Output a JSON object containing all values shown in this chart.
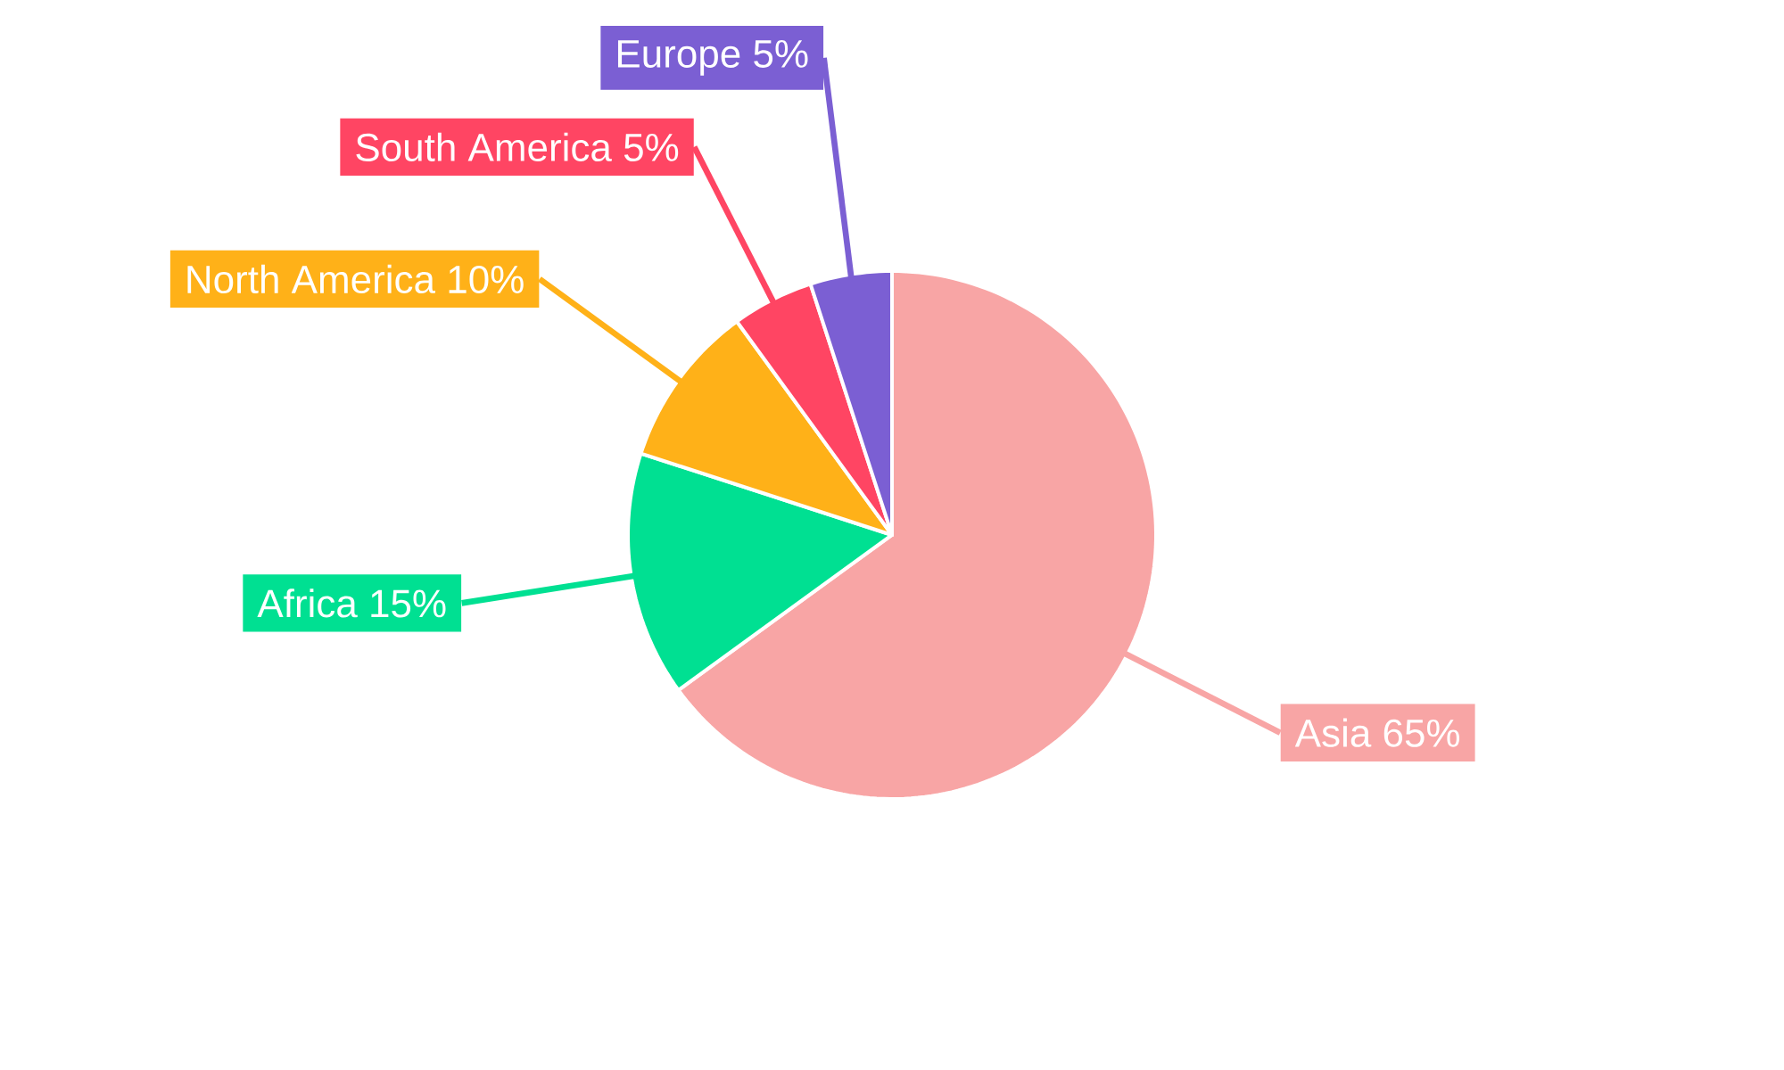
{
  "chart_data": {
    "type": "pie",
    "categories": [
      "Asia",
      "Africa",
      "North America",
      "South America",
      "Europe"
    ],
    "values": [
      65,
      15,
      10,
      5,
      5
    ],
    "value_labels": [
      "65%",
      "15%",
      "10%",
      "5%",
      "5%"
    ],
    "colors": [
      "#f8a5a5",
      "#00e092",
      "#ffb118",
      "#ff4563",
      "#7b5fd3"
    ]
  }
}
